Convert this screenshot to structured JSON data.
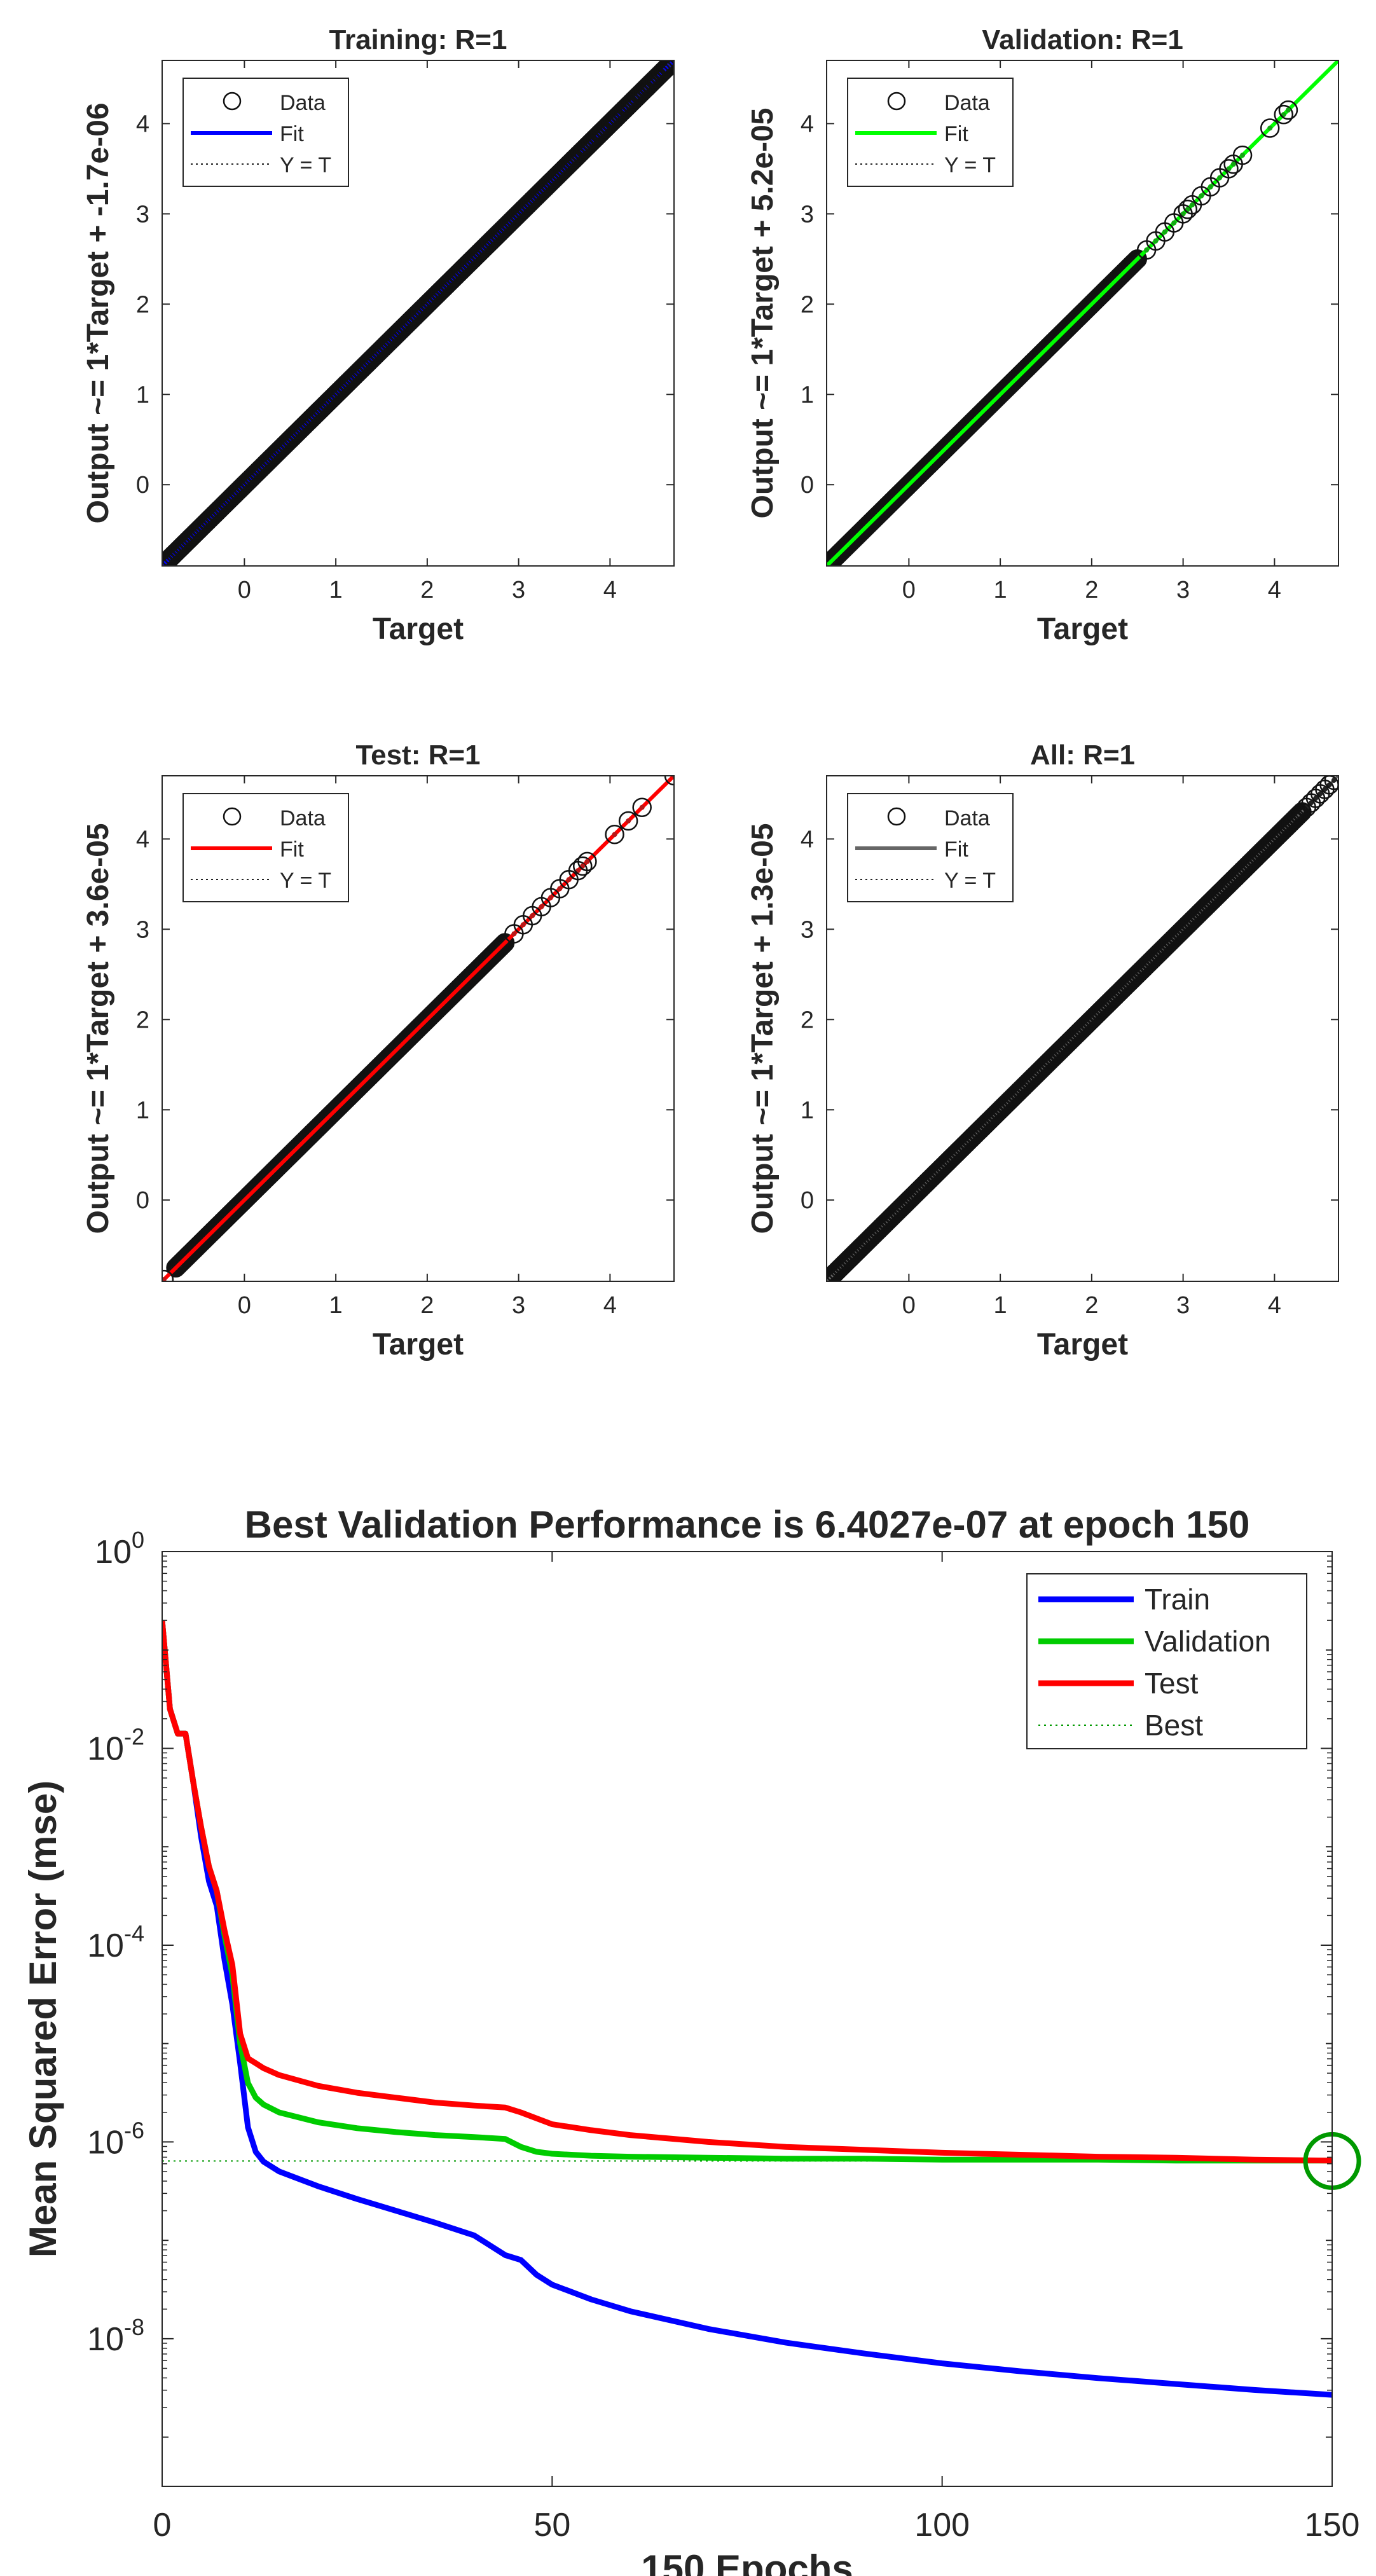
{
  "regression_panels": [
    {
      "key": "training",
      "title": "Training: R=1",
      "ylabel": "Output ~= 1*Target + -1.7e-06",
      "xlabel": "Target",
      "fit_color": "#0000FF",
      "marker_color": "#1a1aa8",
      "legend": {
        "data": "Data",
        "fit": "Fit",
        "yt": "Y = T"
      }
    },
    {
      "key": "validation",
      "title": "Validation: R=1",
      "ylabel": "Output ~= 1*Target + 5.2e-05",
      "xlabel": "Target",
      "fit_color": "#00FF00",
      "marker_color": "#12a812",
      "legend": {
        "data": "Data",
        "fit": "Fit",
        "yt": "Y = T"
      }
    },
    {
      "key": "test",
      "title": "Test: R=1",
      "ylabel": "Output ~= 1*Target + 3.6e-05",
      "xlabel": "Target",
      "fit_color": "#FF0000",
      "marker_color": "#b81818",
      "legend": {
        "data": "Data",
        "fit": "Fit",
        "yt": "Y = T"
      }
    },
    {
      "key": "all",
      "title": "All: R=1",
      "ylabel": "Output ~= 1*Target + 1.3e-05",
      "xlabel": "Target",
      "fit_color": "#666666",
      "marker_color": "#222222",
      "legend": {
        "data": "Data",
        "fit": "Fit",
        "yt": "Y = T"
      }
    }
  ],
  "performance": {
    "title": "Best Validation Performance is 6.4027e-07 at epoch 150",
    "xlabel": "150 Epochs",
    "ylabel": "Mean Squared Error  (mse)",
    "legend": {
      "train": "Train",
      "validation": "Validation",
      "test": "Test",
      "best": "Best"
    }
  },
  "chart_data": [
    {
      "type": "scatter",
      "title": "Training: R=1",
      "xlabel": "Target",
      "ylabel": "Output ~= 1*Target + -1.7e-06",
      "xlim": [
        -0.9,
        4.7
      ],
      "ylim": [
        -0.9,
        4.7
      ],
      "xticks": [
        0,
        1,
        2,
        3,
        4
      ],
      "yticks": [
        0,
        1,
        2,
        3,
        4
      ],
      "fit": {
        "slope": 1,
        "intercept": -1.7e-06
      },
      "point_range": [
        -0.88,
        4.65
      ],
      "sparse_points": [
        3.6,
        3.75,
        3.9,
        4.05,
        4.2,
        4.3,
        4.4,
        4.5,
        4.58,
        4.65
      ]
    },
    {
      "type": "scatter",
      "title": "Validation: R=1",
      "xlabel": "Target",
      "ylabel": "Output ~= 1*Target + 5.2e-05",
      "xlim": [
        -0.9,
        4.7
      ],
      "ylim": [
        -0.9,
        4.7
      ],
      "xticks": [
        0,
        1,
        2,
        3,
        4
      ],
      "yticks": [
        0,
        1,
        2,
        3,
        4
      ],
      "fit": {
        "slope": 1,
        "intercept": 5.2e-05
      },
      "point_range": [
        -0.85,
        2.5
      ],
      "sparse_points": [
        2.6,
        2.7,
        2.8,
        2.9,
        3.0,
        3.05,
        3.1,
        3.2,
        3.3,
        3.4,
        3.5,
        3.55,
        3.65,
        3.95,
        4.1,
        4.15
      ]
    },
    {
      "type": "scatter",
      "title": "Test: R=1",
      "xlabel": "Target",
      "ylabel": "Output ~= 1*Target + 3.6e-05",
      "xlim": [
        -0.9,
        4.7
      ],
      "ylim": [
        -0.9,
        4.7
      ],
      "xticks": [
        0,
        1,
        2,
        3,
        4
      ],
      "yticks": [
        0,
        1,
        2,
        3,
        4
      ],
      "fit": {
        "slope": 1,
        "intercept": 3.6e-05
      },
      "point_range": [
        -0.75,
        2.85
      ],
      "sparse_points": [
        -0.88,
        2.95,
        3.05,
        3.15,
        3.25,
        3.35,
        3.45,
        3.55,
        3.65,
        3.7,
        3.75,
        4.05,
        4.2,
        4.35,
        4.7
      ]
    },
    {
      "type": "scatter",
      "title": "All: R=1",
      "xlabel": "Target",
      "ylabel": "Output ~= 1*Target + 1.3e-05",
      "xlim": [
        -0.9,
        4.7
      ],
      "ylim": [
        -0.9,
        4.7
      ],
      "xticks": [
        0,
        1,
        2,
        3,
        4
      ],
      "yticks": [
        0,
        1,
        2,
        3,
        4
      ],
      "fit": {
        "slope": 1,
        "intercept": 1.3e-05
      },
      "point_range": [
        -0.88,
        4.3
      ],
      "sparse_points": [
        4.35,
        4.4,
        4.45,
        4.5,
        4.55,
        4.6,
        4.65
      ]
    },
    {
      "type": "line",
      "title": "Best Validation Performance is 6.4027e-07 at epoch 150",
      "xlabel": "150 Epochs",
      "ylabel": "Mean Squared Error  (mse)",
      "yscale": "log",
      "xlim": [
        0,
        150
      ],
      "ylim_exp": [
        -9.5,
        0
      ],
      "xticks": [
        0,
        50,
        100,
        150
      ],
      "yticks_exp": [
        -8,
        -6,
        -4,
        -2,
        0
      ],
      "best": {
        "epoch": 150,
        "value": 6.4027e-07
      },
      "series": [
        {
          "name": "Train",
          "color": "#0000FF",
          "x": [
            0,
            1,
            2,
            3,
            4,
            5,
            6,
            7,
            8,
            9,
            10,
            11,
            12,
            13,
            15,
            20,
            25,
            30,
            35,
            40,
            44,
            46,
            48,
            50,
            55,
            60,
            70,
            80,
            90,
            100,
            110,
            120,
            130,
            140,
            150
          ],
          "log10y": [
            -0.7,
            -1.6,
            -1.85,
            -1.85,
            -2.35,
            -2.9,
            -3.35,
            -3.6,
            -4.15,
            -4.6,
            -5.2,
            -5.85,
            -6.1,
            -6.2,
            -6.3,
            -6.45,
            -6.58,
            -6.7,
            -6.82,
            -6.95,
            -7.15,
            -7.2,
            -7.35,
            -7.45,
            -7.6,
            -7.72,
            -7.9,
            -8.04,
            -8.15,
            -8.25,
            -8.33,
            -8.4,
            -8.46,
            -8.52,
            -8.57
          ]
        },
        {
          "name": "Validation",
          "color": "#00CC00",
          "x": [
            0,
            1,
            2,
            3,
            4,
            5,
            6,
            7,
            8,
            9,
            10,
            11,
            12,
            13,
            15,
            20,
            25,
            30,
            35,
            40,
            44,
            46,
            48,
            50,
            55,
            60,
            70,
            80,
            90,
            100,
            110,
            120,
            130,
            140,
            150
          ],
          "log10y": [
            -0.7,
            -1.6,
            -1.85,
            -1.85,
            -2.35,
            -2.8,
            -3.2,
            -3.45,
            -3.9,
            -4.3,
            -5.0,
            -5.4,
            -5.55,
            -5.62,
            -5.7,
            -5.8,
            -5.86,
            -5.9,
            -5.93,
            -5.95,
            -5.97,
            -6.05,
            -6.1,
            -6.12,
            -6.14,
            -6.15,
            -6.16,
            -6.17,
            -6.17,
            -6.18,
            -6.18,
            -6.18,
            -6.19,
            -6.19,
            -6.19
          ]
        },
        {
          "name": "Test",
          "color": "#FF0000",
          "x": [
            0,
            1,
            2,
            3,
            4,
            5,
            6,
            7,
            8,
            9,
            10,
            11,
            12,
            13,
            15,
            20,
            25,
            30,
            35,
            40,
            44,
            46,
            48,
            50,
            55,
            60,
            70,
            80,
            90,
            100,
            110,
            120,
            130,
            140,
            150
          ],
          "log10y": [
            -0.7,
            -1.6,
            -1.85,
            -1.85,
            -2.35,
            -2.8,
            -3.2,
            -3.45,
            -3.85,
            -4.2,
            -4.9,
            -5.15,
            -5.2,
            -5.25,
            -5.32,
            -5.43,
            -5.5,
            -5.55,
            -5.6,
            -5.63,
            -5.65,
            -5.7,
            -5.76,
            -5.82,
            -5.88,
            -5.93,
            -6.0,
            -6.05,
            -6.08,
            -6.11,
            -6.13,
            -6.15,
            -6.16,
            -6.18,
            -6.19
          ]
        }
      ]
    }
  ]
}
